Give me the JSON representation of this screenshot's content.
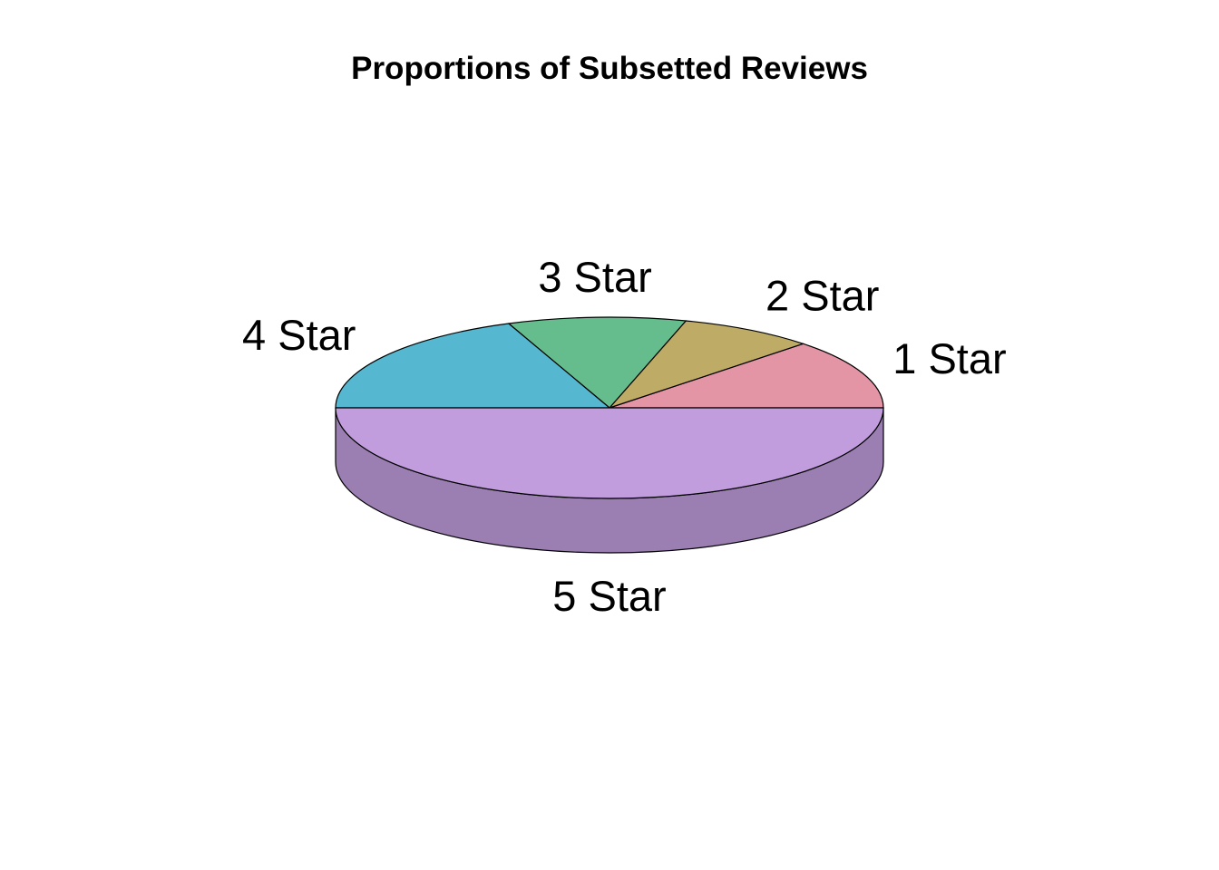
{
  "chart_data": {
    "type": "pie",
    "style": "3d",
    "title": "Proportions of Subsetted Reviews",
    "categories": [
      "1 Star",
      "2 Star",
      "3 Star",
      "4 Star",
      "5 Star"
    ],
    "values": [
      0.125,
      0.08,
      0.105,
      0.19,
      0.5
    ],
    "colors": [
      "#E495A5",
      "#BDAB66",
      "#65BC8C",
      "#55B8D0",
      "#C29DDE"
    ],
    "side_colors": [
      "#B67784",
      "#978952",
      "#519670",
      "#4493A6",
      "#9B7FB2"
    ],
    "start": "right, counterclockwise"
  }
}
